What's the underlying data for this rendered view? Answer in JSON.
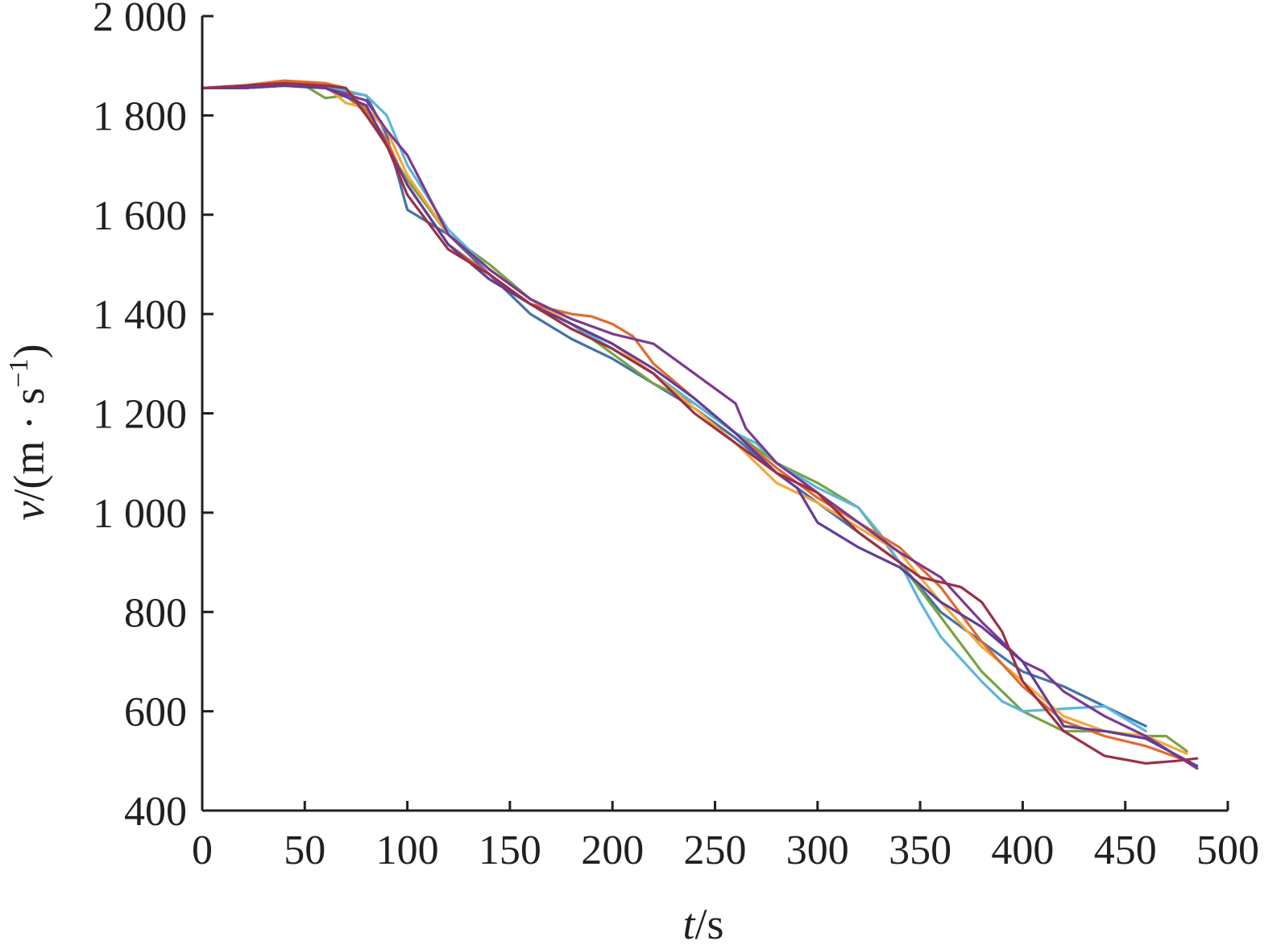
{
  "chart_data": {
    "type": "line",
    "title": "",
    "xlabel": {
      "italic": "t",
      "rest": "/s"
    },
    "ylabel": {
      "italic": "v",
      "rest": "/(m · s",
      "sup": "−1",
      "close": ")"
    },
    "xlim": [
      0,
      500
    ],
    "ylim": [
      400,
      2000
    ],
    "xticks": [
      0,
      50,
      100,
      150,
      200,
      250,
      300,
      350,
      400,
      450,
      500
    ],
    "xtick_labels": [
      "0",
      "50",
      "100",
      "150",
      "200",
      "250",
      "300",
      "350",
      "400",
      "450",
      "500"
    ],
    "yticks": [
      400,
      600,
      800,
      1000,
      1200,
      1400,
      1600,
      1800,
      2000
    ],
    "ytick_labels": [
      "400",
      "600",
      "800",
      "1 000",
      "1 200",
      "1 400",
      "1 600",
      "1 800",
      "2 000"
    ],
    "grid": false,
    "legend": "none",
    "series": [
      {
        "color": "#4472a8",
        "x": [
          0,
          20,
          40,
          60,
          80,
          90,
          100,
          120,
          140,
          160,
          180,
          200,
          220,
          240,
          260,
          280,
          300,
          320,
          340,
          360,
          380,
          400,
          420,
          440,
          460
        ],
        "y": [
          1855,
          1855,
          1860,
          1855,
          1840,
          1760,
          1610,
          1560,
          1480,
          1400,
          1350,
          1310,
          1260,
          1210,
          1150,
          1080,
          1020,
          960,
          900,
          800,
          740,
          680,
          650,
          610,
          570
        ]
      },
      {
        "color": "#77a342",
        "x": [
          0,
          20,
          40,
          50,
          60,
          70,
          80,
          100,
          120,
          140,
          160,
          180,
          200,
          220,
          240,
          260,
          280,
          300,
          320,
          340,
          360,
          380,
          400,
          420,
          440,
          460,
          470,
          480
        ],
        "y": [
          1855,
          1855,
          1860,
          1860,
          1835,
          1840,
          1805,
          1670,
          1560,
          1500,
          1430,
          1380,
          1320,
          1260,
          1220,
          1160,
          1100,
          1060,
          1010,
          900,
          790,
          680,
          600,
          560,
          560,
          550,
          550,
          520
        ]
      },
      {
        "color": "#5bb5de",
        "x": [
          0,
          20,
          40,
          60,
          80,
          90,
          100,
          120,
          140,
          160,
          180,
          200,
          220,
          240,
          260,
          270,
          280,
          300,
          320,
          330,
          340,
          350,
          360,
          380,
          390,
          400,
          420,
          440,
          460
        ],
        "y": [
          1855,
          1855,
          1860,
          1860,
          1840,
          1800,
          1700,
          1570,
          1490,
          1430,
          1380,
          1330,
          1280,
          1220,
          1160,
          1140,
          1100,
          1050,
          1010,
          960,
          900,
          820,
          750,
          660,
          620,
          600,
          605,
          610,
          560
        ]
      },
      {
        "color": "#f3a83b",
        "x": [
          0,
          20,
          40,
          60,
          70,
          80,
          90,
          100,
          120,
          140,
          160,
          180,
          200,
          220,
          240,
          260,
          280,
          300,
          320,
          340,
          360,
          380,
          400,
          420,
          440,
          460,
          480
        ],
        "y": [
          1855,
          1860,
          1865,
          1860,
          1825,
          1815,
          1770,
          1680,
          1560,
          1490,
          1430,
          1380,
          1340,
          1280,
          1210,
          1140,
          1060,
          1020,
          970,
          920,
          820,
          730,
          660,
          590,
          560,
          550,
          515
        ]
      },
      {
        "color": "#e26a2c",
        "x": [
          0,
          20,
          40,
          60,
          70,
          80,
          90,
          100,
          120,
          140,
          160,
          180,
          190,
          200,
          210,
          220,
          240,
          260,
          280,
          300,
          320,
          340,
          360,
          380,
          400,
          420,
          440,
          460,
          480
        ],
        "y": [
          1855,
          1860,
          1870,
          1865,
          1855,
          1810,
          1750,
          1660,
          1540,
          1480,
          1420,
          1400,
          1395,
          1380,
          1355,
          1300,
          1230,
          1160,
          1090,
          1030,
          980,
          930,
          850,
          740,
          650,
          580,
          550,
          530,
          500
        ]
      },
      {
        "color": "#7d3a8f",
        "x": [
          0,
          20,
          40,
          60,
          80,
          90,
          100,
          110,
          120,
          140,
          160,
          180,
          200,
          220,
          240,
          260,
          265,
          280,
          300,
          320,
          340,
          360,
          380,
          400,
          410,
          420,
          440,
          460,
          485
        ],
        "y": [
          1855,
          1855,
          1860,
          1855,
          1830,
          1770,
          1720,
          1640,
          1560,
          1490,
          1430,
          1390,
          1360,
          1340,
          1280,
          1220,
          1170,
          1100,
          1040,
          980,
          920,
          870,
          780,
          700,
          680,
          640,
          590,
          550,
          485
        ]
      },
      {
        "color": "#643c98",
        "x": [
          0,
          20,
          40,
          60,
          80,
          100,
          120,
          140,
          160,
          180,
          200,
          220,
          240,
          260,
          280,
          290,
          300,
          320,
          340,
          360,
          380,
          400,
          420,
          440,
          460,
          485
        ],
        "y": [
          1855,
          1855,
          1860,
          1855,
          1820,
          1660,
          1540,
          1470,
          1420,
          1380,
          1340,
          1290,
          1230,
          1160,
          1080,
          1050,
          980,
          930,
          890,
          820,
          770,
          700,
          570,
          560,
          545,
          490
        ]
      },
      {
        "color": "#9c2f45",
        "x": [
          0,
          20,
          40,
          60,
          70,
          80,
          90,
          100,
          120,
          140,
          160,
          180,
          200,
          220,
          240,
          260,
          280,
          300,
          320,
          340,
          350,
          360,
          370,
          380,
          390,
          400,
          420,
          440,
          460,
          475,
          485
        ],
        "y": [
          1855,
          1860,
          1865,
          1860,
          1855,
          1800,
          1740,
          1640,
          1530,
          1480,
          1420,
          1370,
          1330,
          1280,
          1200,
          1140,
          1080,
          1040,
          960,
          900,
          870,
          860,
          850,
          820,
          760,
          660,
          560,
          510,
          495,
          500,
          505
        ]
      }
    ]
  }
}
